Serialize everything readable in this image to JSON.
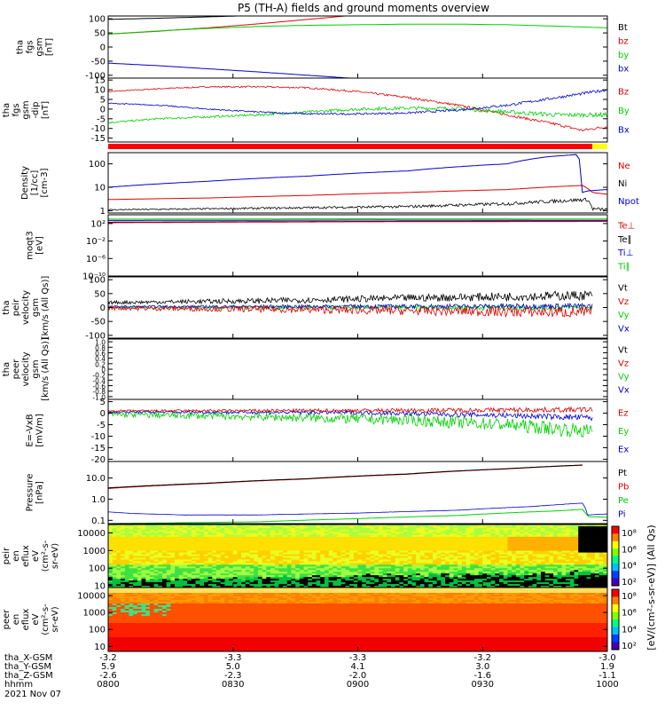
{
  "title": "P5 (TH-A) fields and ground moments overview",
  "colors": {
    "black": "#000000",
    "red": "#e00000",
    "green": "#00d000",
    "blue": "#0000d0",
    "bar_red": "#ff0000",
    "bar_yellow": "#ffff00"
  },
  "chart_data": [
    {
      "id": "fgs_gsm_1",
      "type": "line",
      "ylabel": [
        "tha",
        "fgs",
        "gsm",
        "[nT]"
      ],
      "ylim": [
        -110,
        110
      ],
      "yticks": [
        100,
        50,
        0,
        -50,
        -100
      ],
      "legend": [
        {
          "label": "Bt",
          "color": "black"
        },
        {
          "label": "bz",
          "color": "red"
        },
        {
          "label": "by",
          "color": "green"
        },
        {
          "label": "bx",
          "color": "blue"
        }
      ],
      "series": [
        {
          "name": "Bt",
          "color": "black",
          "x": [
            0,
            0.1,
            0.2,
            0.3,
            0.4
          ],
          "y": [
            98,
            102,
            107,
            112,
            118
          ]
        },
        {
          "name": "bz",
          "color": "red",
          "x": [
            0,
            0.1,
            0.2,
            0.3,
            0.4,
            0.5
          ],
          "y": [
            46,
            56,
            68,
            82,
            98,
            114
          ]
        },
        {
          "name": "by",
          "color": "green",
          "x": [
            0,
            0.1,
            0.2,
            0.3,
            0.4,
            0.5,
            0.6,
            0.7,
            0.8,
            0.9,
            1.0
          ],
          "y": [
            46,
            57,
            66,
            73,
            77,
            79,
            81,
            81,
            79,
            74,
            68
          ]
        },
        {
          "name": "bx",
          "color": "blue",
          "x": [
            0,
            0.1,
            0.2,
            0.3,
            0.4,
            0.5
          ],
          "y": [
            -57,
            -66,
            -77,
            -88,
            -100,
            -112
          ]
        }
      ]
    },
    {
      "id": "fgs_gsm_2",
      "type": "line",
      "ylabel": [
        "tha",
        "fgs",
        "gsm",
        "-dip",
        "[nT]"
      ],
      "ylim": [
        -17,
        16
      ],
      "yticks": [
        15,
        10,
        5,
        0,
        -5,
        -10,
        -15
      ],
      "legend": [
        {
          "label": "Bz",
          "color": "red"
        },
        {
          "label": "By",
          "color": "green"
        },
        {
          "label": "Bx",
          "color": "blue"
        }
      ],
      "series": [
        {
          "name": "Bz",
          "color": "red",
          "noise": 0.5,
          "x": [
            0,
            0.1,
            0.2,
            0.3,
            0.4,
            0.5,
            0.6,
            0.7,
            0.8,
            0.9,
            0.95,
            1.0
          ],
          "y": [
            9,
            10.5,
            11.5,
            11.5,
            11,
            9,
            6,
            2,
            -3,
            -8,
            -11,
            -9
          ]
        },
        {
          "name": "By",
          "color": "green",
          "noise": 0.8,
          "x": [
            0,
            0.1,
            0.2,
            0.3,
            0.4,
            0.5,
            0.6,
            0.7,
            0.8,
            0.9,
            1.0
          ],
          "y": [
            -7,
            -5,
            -4,
            -3,
            -1.5,
            0,
            0.5,
            0.3,
            -1.5,
            -3,
            -3
          ]
        },
        {
          "name": "Bx",
          "color": "blue",
          "noise": 0.5,
          "x": [
            0,
            0.1,
            0.2,
            0.3,
            0.4,
            0.5,
            0.6,
            0.7,
            0.8,
            0.9,
            1.0
          ],
          "y": [
            3,
            2,
            0,
            -1.5,
            -2.5,
            -2.5,
            -2,
            -0.5,
            2,
            6,
            10
          ]
        }
      ]
    },
    {
      "id": "flag_bar",
      "type": "bar",
      "segments": [
        {
          "from": 0,
          "to": 0.97,
          "color": "bar_red"
        },
        {
          "from": 0.97,
          "to": 1.0,
          "color": "bar_yellow"
        }
      ]
    },
    {
      "id": "density",
      "type": "line",
      "yscale": "log",
      "ylabel": [
        "Density",
        "[1/cc]",
        "[cm-3]"
      ],
      "ylim": [
        0.8,
        300
      ],
      "yticks": [
        100,
        10,
        1
      ],
      "legend": [
        {
          "label": "Ne",
          "color": "red"
        },
        {
          "label": "Ni",
          "color": "black"
        },
        {
          "label": "Npot",
          "color": "blue"
        }
      ],
      "series": [
        {
          "name": "Ne",
          "color": "red",
          "x": [
            0,
            0.2,
            0.4,
            0.6,
            0.8,
            0.95,
            0.97,
            1.0
          ],
          "y": [
            3,
            3.5,
            4.5,
            6,
            8,
            12,
            6,
            5
          ]
        },
        {
          "name": "Ni",
          "color": "black",
          "noise": 0.12,
          "x": [
            0,
            0.2,
            0.4,
            0.6,
            0.8,
            0.96,
            0.97,
            1.0
          ],
          "y": [
            1.1,
            1.2,
            1.35,
            1.5,
            2,
            3,
            1.2,
            1.1
          ]
        },
        {
          "name": "Npot",
          "color": "blue",
          "x": [
            0,
            0.2,
            0.4,
            0.6,
            0.8,
            0.88,
            0.94,
            0.95,
            0.96,
            1.0
          ],
          "y": [
            10,
            18,
            30,
            50,
            100,
            200,
            250,
            6,
            7,
            8
          ]
        }
      ]
    },
    {
      "id": "moqt3",
      "type": "line",
      "yscale": "log",
      "ylabel": [
        "moqt3",
        "[eV]"
      ],
      "ylim": [
        1e-10,
        10000
      ],
      "yticks": [
        100,
        0.01,
        1e-06,
        1e-10
      ],
      "yticklabels": [
        "10²",
        "10⁻²",
        "10⁻⁶",
        "10⁻¹⁰"
      ],
      "legend": [
        {
          "label": "Te⊥",
          "color": "red"
        },
        {
          "label": "Te∥",
          "color": "black"
        },
        {
          "label": "Ti⊥",
          "color": "blue"
        },
        {
          "label": "Ti∥",
          "color": "green"
        }
      ],
      "series": [
        {
          "name": "Ti∥",
          "color": "green",
          "x": [
            0,
            0.5,
            1.0
          ],
          "y": [
            1000,
            1200,
            1100
          ]
        },
        {
          "name": "Ti⊥",
          "color": "blue",
          "x": [
            0,
            0.5,
            1.0
          ],
          "y": [
            500,
            600,
            550
          ]
        },
        {
          "name": "Te∥",
          "color": "black",
          "x": [
            0,
            0.5,
            1.0
          ],
          "y": [
            200,
            300,
            350
          ]
        },
        {
          "name": "Te⊥",
          "color": "red",
          "x": [
            0,
            0.5,
            1.0
          ],
          "y": [
            150,
            250,
            300
          ]
        }
      ]
    },
    {
      "id": "peir_velocity",
      "type": "line",
      "ylabel": [
        "tha",
        "peir",
        "velocity",
        "gsm",
        "[km/s (All Qs)]"
      ],
      "ylim": [
        -110,
        110
      ],
      "yticks": [
        100,
        50,
        0,
        -50,
        -100
      ],
      "legend": [
        {
          "label": "Vt",
          "color": "black"
        },
        {
          "label": "Vz",
          "color": "red"
        },
        {
          "label": "Vy",
          "color": "green"
        },
        {
          "label": "Vx",
          "color": "blue"
        }
      ],
      "series": [
        {
          "name": "Vy",
          "color": "green",
          "noise": 8,
          "x": [
            0,
            0.97
          ],
          "y": [
            0,
            0
          ]
        },
        {
          "name": "Vx",
          "color": "blue",
          "noise": 7,
          "x": [
            0,
            0.97
          ],
          "y": [
            3,
            5
          ]
        },
        {
          "name": "Vz",
          "color": "red",
          "noise": 14,
          "x": [
            0,
            0.3,
            0.6,
            0.97
          ],
          "y": [
            -2,
            -6,
            -12,
            -18
          ]
        },
        {
          "name": "Vt",
          "color": "black",
          "noise": 12,
          "x": [
            0,
            0.3,
            0.6,
            0.97
          ],
          "y": [
            18,
            24,
            34,
            44
          ]
        }
      ]
    },
    {
      "id": "peer_velocity",
      "type": "line",
      "ylabel": [
        "tha",
        "peer",
        "velocity",
        "gsm",
        "[km/s (All Qs)]"
      ],
      "ylim": [
        -1.1,
        1.1
      ],
      "yticks": [
        1.0,
        0.8,
        0.6,
        0.4,
        0.2,
        0,
        -0.2,
        -0.4,
        -0.6,
        -0.8,
        -1.0
      ],
      "yticklabels": [
        "1.0",
        "0.8",
        "0.6",
        "0.4",
        "0.2",
        "0",
        "-0.2",
        "-0.4",
        "-0.6",
        "-0.8",
        "-1.0"
      ],
      "legend": [
        {
          "label": "Vt",
          "color": "black"
        },
        {
          "label": "Vz",
          "color": "red"
        },
        {
          "label": "Vy",
          "color": "green"
        },
        {
          "label": "Vx",
          "color": "blue"
        }
      ],
      "series": []
    },
    {
      "id": "efield",
      "type": "line",
      "ylabel": [
        "E=-VxB",
        "[mV/m]"
      ],
      "ylim": [
        -21,
        6
      ],
      "yticks": [
        5,
        0,
        -5,
        -10,
        -15,
        -20
      ],
      "legend": [
        {
          "label": "Ez",
          "color": "red"
        },
        {
          "label": "Ey",
          "color": "green"
        },
        {
          "label": "Ex",
          "color": "blue"
        }
      ],
      "series": [
        {
          "name": "Ey",
          "color": "green",
          "noise": 2.2,
          "x": [
            0,
            0.3,
            0.6,
            0.8,
            0.97
          ],
          "y": [
            -0.5,
            -1.5,
            -3,
            -5,
            -8
          ]
        },
        {
          "name": "Ex",
          "color": "blue",
          "noise": 0.9,
          "x": [
            0,
            0.5,
            0.8,
            0.97
          ],
          "y": [
            0.5,
            0.3,
            -1,
            -2
          ]
        },
        {
          "name": "Ez",
          "color": "red",
          "noise": 0.8,
          "x": [
            0,
            0.5,
            0.97
          ],
          "y": [
            1,
            1.2,
            1.5
          ]
        }
      ]
    },
    {
      "id": "pressure",
      "type": "line",
      "yscale": "log",
      "ylabel": [
        "Pressure",
        "[nPa]"
      ],
      "ylim": [
        0.07,
        60
      ],
      "yticks": [
        10,
        1,
        0.1
      ],
      "yticklabels": [
        "10.0",
        "1.0",
        "0.1"
      ],
      "legend": [
        {
          "label": "Pt",
          "color": "black"
        },
        {
          "label": "Pb",
          "color": "red"
        },
        {
          "label": "Pe",
          "color": "green"
        },
        {
          "label": "Pi",
          "color": "blue"
        }
      ],
      "series": [
        {
          "name": "Pb",
          "color": "red",
          "x": [
            0,
            0.2,
            0.4,
            0.6,
            0.8,
            0.95
          ],
          "y": [
            3.2,
            5.5,
            9,
            15,
            27,
            40
          ]
        },
        {
          "name": "Pt",
          "color": "black",
          "x": [
            0,
            0.2,
            0.4,
            0.6,
            0.8,
            0.95
          ],
          "y": [
            3.4,
            5.7,
            9.3,
            15.5,
            27.5,
            41
          ]
        },
        {
          "name": "Pi",
          "color": "blue",
          "noise": 0.01,
          "x": [
            0,
            0.05,
            0.15,
            0.3,
            0.5,
            0.7,
            0.85,
            0.95,
            0.96,
            1.0
          ],
          "y": [
            0.25,
            0.21,
            0.18,
            0.18,
            0.22,
            0.3,
            0.45,
            0.65,
            0.18,
            0.2
          ]
        },
        {
          "name": "Pe",
          "color": "green",
          "x": [
            0,
            0.3,
            0.5,
            0.7,
            0.9,
            0.95,
            0.96,
            1.0
          ],
          "y": [
            0.07,
            0.085,
            0.12,
            0.17,
            0.28,
            0.33,
            0.15,
            0.14
          ]
        }
      ]
    },
    {
      "id": "peir_spectrogram",
      "type": "heatmap",
      "ylabel": [
        "tha",
        "peir",
        "en",
        "eflux",
        "eV",
        "(cm²-s-",
        "sr-eV)"
      ],
      "yscale": "log",
      "ylim": [
        8,
        30000
      ],
      "yticks": [
        10000,
        1000,
        100,
        10
      ],
      "yticklabels": [
        "10000",
        "1000",
        "100",
        "10"
      ]
    },
    {
      "id": "peer_spectrogram",
      "type": "heatmap",
      "ylabel": [
        "tha",
        "peer",
        "en",
        "eflux",
        "eV",
        "(cm²-s-",
        "sr-eV)"
      ],
      "yscale": "log",
      "ylim": [
        5,
        30000
      ],
      "yticks": [
        10000,
        1000,
        100,
        10
      ],
      "yticklabels": [
        "10000",
        "1000",
        "100",
        "10"
      ]
    }
  ],
  "colorbar": {
    "label": "[eV/(cm²-s-sr-eV)]  (All Qs)",
    "upper_ticks": [
      "10⁸",
      "10⁶",
      "10⁴",
      "10²"
    ],
    "lower_ticks": [
      "10⁸",
      "10⁶",
      "10⁴",
      "10²"
    ]
  },
  "xaxis": {
    "rows": [
      {
        "label": "tha_X-GSM",
        "values": [
          "-3.2",
          "-3.3",
          "-3.3",
          "-3.2",
          "-3.0"
        ]
      },
      {
        "label": "tha_Y-GSM",
        "values": [
          "5.9",
          "5.0",
          "4.1",
          "3.0",
          "1.9"
        ]
      },
      {
        "label": "tha_Z-GSM",
        "values": [
          "-2.6",
          "-2.3",
          "-2.0",
          "-1.6",
          "-1.1"
        ]
      },
      {
        "label": "hhmm",
        "values": [
          "0800",
          "0830",
          "0900",
          "0930",
          "1000"
        ]
      }
    ],
    "date": "2021 Nov 07"
  }
}
